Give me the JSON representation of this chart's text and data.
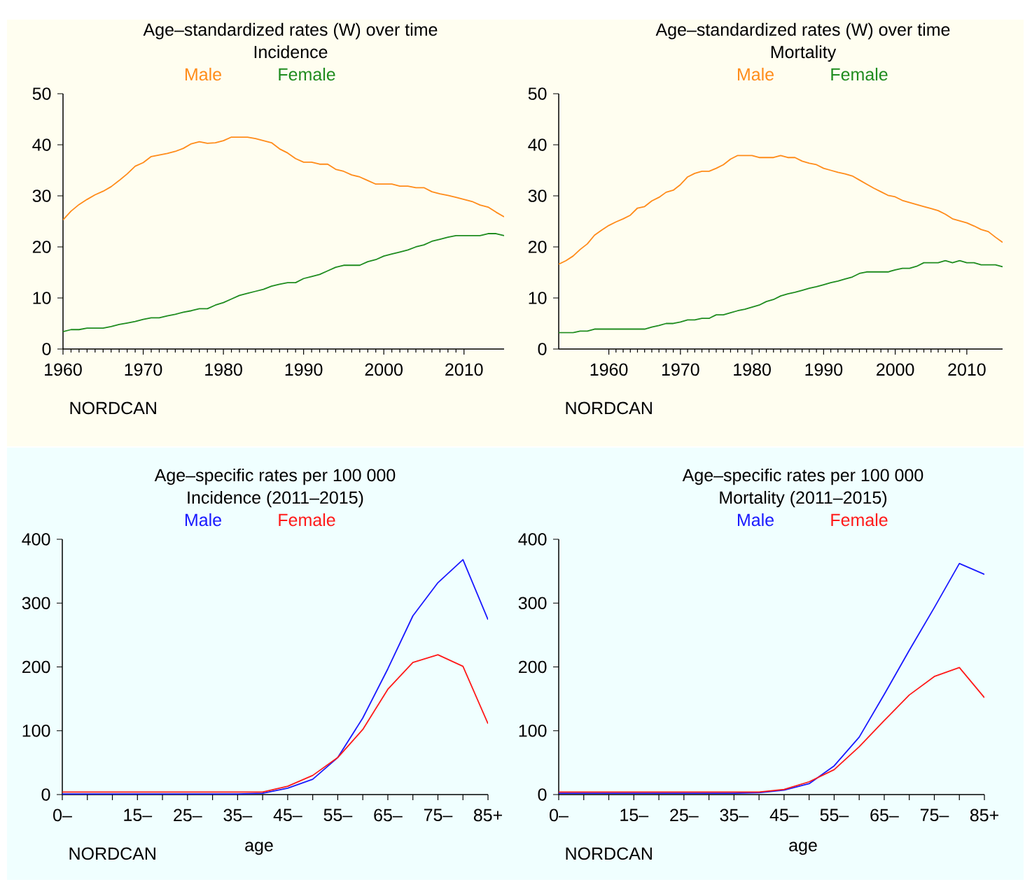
{
  "chart_data": [
    {
      "type": "line",
      "title": "Age–standardized rates (W) over time",
      "subtitle": "Incidence",
      "legend": "top",
      "annotations": [
        "NORDCAN"
      ],
      "xlim": [
        1960,
        2015
      ],
      "xticks": [
        1960,
        1970,
        1980,
        1990,
        2000,
        2010
      ],
      "ylim": [
        0,
        50
      ],
      "yticks": [
        0,
        10,
        20,
        30,
        40,
        50
      ],
      "x": [
        1960,
        1961,
        1962,
        1963,
        1964,
        1965,
        1966,
        1967,
        1968,
        1969,
        1970,
        1971,
        1972,
        1973,
        1974,
        1975,
        1976,
        1977,
        1978,
        1979,
        1980,
        1981,
        1982,
        1983,
        1984,
        1985,
        1986,
        1987,
        1988,
        1989,
        1990,
        1991,
        1992,
        1993,
        1994,
        1995,
        1996,
        1997,
        1998,
        1999,
        2000,
        2001,
        2002,
        2003,
        2004,
        2005,
        2006,
        2007,
        2008,
        2009,
        2010,
        2011,
        2012,
        2013,
        2014,
        2015
      ],
      "series": [
        {
          "name": "Male",
          "color": "#ff8c1a",
          "values": [
            25.3,
            27.0,
            28.3,
            29.3,
            30.2,
            30.9,
            31.8,
            33.0,
            34.3,
            35.8,
            36.5,
            37.7,
            38.0,
            38.3,
            38.7,
            39.3,
            40.2,
            40.6,
            40.3,
            40.4,
            40.8,
            41.5,
            41.5,
            41.5,
            41.2,
            40.8,
            40.4,
            39.2,
            38.4,
            37.3,
            36.6,
            36.6,
            36.2,
            36.2,
            35.2,
            34.8,
            34.1,
            33.7,
            33.0,
            32.3,
            32.3,
            32.3,
            31.9,
            31.9,
            31.6,
            31.6,
            30.8,
            30.4,
            30.1,
            29.7,
            29.3,
            28.9,
            28.2,
            27.8,
            26.8,
            25.9
          ]
        },
        {
          "name": "Female",
          "color": "#1f8c1f",
          "values": [
            3.4,
            3.8,
            3.8,
            4.1,
            4.1,
            4.1,
            4.4,
            4.8,
            5.1,
            5.4,
            5.8,
            6.1,
            6.1,
            6.5,
            6.8,
            7.2,
            7.5,
            7.9,
            7.9,
            8.6,
            9.1,
            9.8,
            10.5,
            10.9,
            11.3,
            11.7,
            12.3,
            12.7,
            13.0,
            13.0,
            13.8,
            14.2,
            14.6,
            15.3,
            16.0,
            16.4,
            16.4,
            16.4,
            17.1,
            17.5,
            18.2,
            18.6,
            19.0,
            19.4,
            20.0,
            20.4,
            21.1,
            21.5,
            21.9,
            22.2,
            22.2,
            22.2,
            22.2,
            22.6,
            22.6,
            22.2
          ]
        }
      ]
    },
    {
      "type": "line",
      "title": "Age–standardized rates (W) over time",
      "subtitle": "Mortality",
      "legend": "top",
      "annotations": [
        "NORDCAN"
      ],
      "xlim": [
        1953,
        2015
      ],
      "xticks": [
        1960,
        1970,
        1980,
        1990,
        2000,
        2010
      ],
      "ylim": [
        0,
        50
      ],
      "yticks": [
        0,
        10,
        20,
        30,
        40,
        50
      ],
      "x": [
        1953,
        1954,
        1955,
        1956,
        1957,
        1958,
        1959,
        1960,
        1961,
        1962,
        1963,
        1964,
        1965,
        1966,
        1967,
        1968,
        1969,
        1970,
        1971,
        1972,
        1973,
        1974,
        1975,
        1976,
        1977,
        1978,
        1979,
        1980,
        1981,
        1982,
        1983,
        1984,
        1985,
        1986,
        1987,
        1988,
        1989,
        1990,
        1991,
        1992,
        1993,
        1994,
        1995,
        1996,
        1997,
        1998,
        1999,
        2000,
        2001,
        2002,
        2003,
        2004,
        2005,
        2006,
        2007,
        2008,
        2009,
        2010,
        2011,
        2012,
        2013,
        2014,
        2015
      ],
      "series": [
        {
          "name": "Male",
          "color": "#ff8c1a",
          "values": [
            16.6,
            17.3,
            18.2,
            19.5,
            20.6,
            22.3,
            23.3,
            24.2,
            24.9,
            25.5,
            26.2,
            27.6,
            27.9,
            29.0,
            29.7,
            30.7,
            31.1,
            32.2,
            33.7,
            34.4,
            34.8,
            34.8,
            35.4,
            36.1,
            37.2,
            37.9,
            37.9,
            37.9,
            37.5,
            37.5,
            37.5,
            37.9,
            37.5,
            37.5,
            36.8,
            36.4,
            36.1,
            35.4,
            35.0,
            34.6,
            34.3,
            33.9,
            33.1,
            32.3,
            31.5,
            30.8,
            30.1,
            29.8,
            29.1,
            28.7,
            28.3,
            27.9,
            27.5,
            27.1,
            26.4,
            25.5,
            25.1,
            24.7,
            24.1,
            23.4,
            23.0,
            21.9,
            20.9
          ]
        },
        {
          "name": "Female",
          "color": "#1f8c1f",
          "values": [
            3.2,
            3.2,
            3.2,
            3.5,
            3.5,
            3.9,
            3.9,
            3.9,
            3.9,
            3.9,
            3.9,
            3.9,
            3.9,
            4.3,
            4.6,
            5.0,
            5.0,
            5.3,
            5.7,
            5.7,
            6.0,
            6.0,
            6.7,
            6.7,
            7.1,
            7.5,
            7.8,
            8.2,
            8.6,
            9.3,
            9.7,
            10.4,
            10.8,
            11.1,
            11.5,
            11.9,
            12.2,
            12.6,
            13.0,
            13.3,
            13.7,
            14.1,
            14.8,
            15.1,
            15.1,
            15.1,
            15.1,
            15.5,
            15.8,
            15.8,
            16.2,
            16.9,
            16.9,
            16.9,
            17.3,
            16.9,
            17.3,
            16.9,
            16.9,
            16.5,
            16.5,
            16.5,
            16.1
          ]
        }
      ]
    },
    {
      "type": "line",
      "title": "Age–specific rates per 100 000",
      "subtitle": "Incidence (2011–2015)",
      "legend": "top",
      "annotations": [
        "NORDCAN"
      ],
      "xlabel": "age",
      "categories": [
        "0–",
        null,
        null,
        "15–",
        null,
        "25–",
        null,
        "35–",
        null,
        "45–",
        null,
        "55–",
        null,
        "65–",
        null,
        "75–",
        null,
        "85+"
      ],
      "ylim": [
        0,
        400
      ],
      "yticks": [
        0,
        100,
        200,
        300,
        400
      ],
      "series": [
        {
          "name": "Male",
          "color": "#1a1aff",
          "values": [
            1,
            1,
            1,
            1,
            1,
            1,
            1,
            1,
            2,
            10,
            24,
            58,
            120,
            197,
            280,
            332,
            368,
            274
          ]
        },
        {
          "name": "Female",
          "color": "#ff1a1a",
          "values": [
            4,
            4,
            4,
            4,
            4,
            4,
            4,
            4,
            4,
            13,
            30,
            58,
            102,
            165,
            207,
            219,
            201,
            111
          ]
        }
      ]
    },
    {
      "type": "line",
      "title": "Age–specific rates per 100 000",
      "subtitle": "Mortality (2011–2015)",
      "legend": "top",
      "annotations": [
        "NORDCAN"
      ],
      "xlabel": "age",
      "categories": [
        "0–",
        null,
        null,
        "15–",
        null,
        "25–",
        null,
        "35–",
        null,
        "45–",
        null,
        "55–",
        null,
        "65–",
        null,
        "75–",
        null,
        "85+"
      ],
      "ylim": [
        0,
        400
      ],
      "yticks": [
        0,
        100,
        200,
        300,
        400
      ],
      "series": [
        {
          "name": "Male",
          "color": "#1a1aff",
          "values": [
            2,
            2,
            2,
            2,
            2,
            2,
            2,
            2,
            3,
            7,
            17,
            45,
            90,
            157,
            226,
            293,
            362,
            345
          ]
        },
        {
          "name": "Female",
          "color": "#ff1a1a",
          "values": [
            4,
            4,
            4,
            4,
            4,
            4,
            4,
            4,
            4,
            8,
            20,
            39,
            75,
            116,
            156,
            185,
            199,
            152
          ]
        }
      ]
    }
  ]
}
